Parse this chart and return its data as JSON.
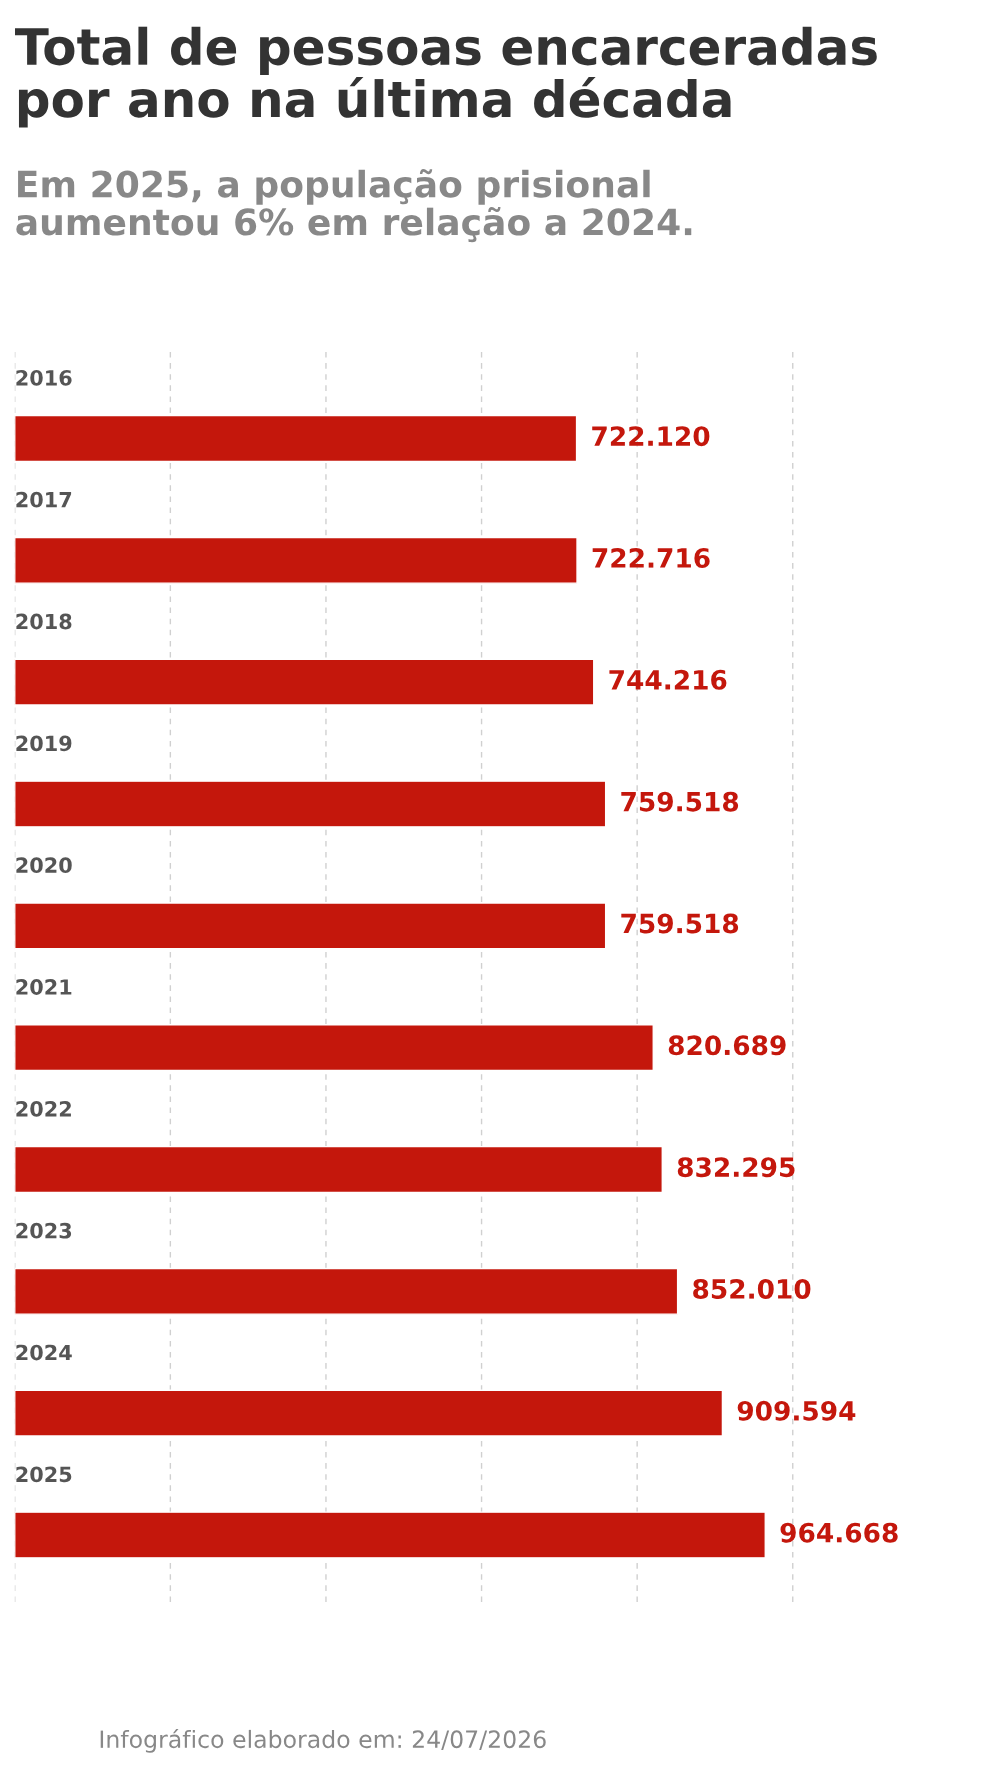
{
  "chart_data": {
    "type": "bar",
    "orientation": "horizontal",
    "title": "Total de pessoas encarceradas\npor ano na última década",
    "subtitle": "Em 2025, a população prisional\naumentou 6% em relação a 2024.",
    "categories": [
      "2016",
      "2017",
      "2018",
      "2019",
      "2020",
      "2021",
      "2022",
      "2023",
      "2024",
      "2025"
    ],
    "values": [
      722120,
      722716,
      744216,
      759518,
      759518,
      820689,
      832295,
      852010,
      909594,
      964668
    ],
    "color": "#c4170c",
    "value_labels": [
      "722.120",
      "722.716",
      "744.216",
      "759.518",
      "759.518",
      "820.689",
      "832.295",
      "852.010",
      "909.594",
      "964.668"
    ],
    "grid": "x",
    "tick_labels": "y",
    "legend": false,
    "annotations": [
      "Infográfico elaborado em: 24/07/2026"
    ]
  }
}
